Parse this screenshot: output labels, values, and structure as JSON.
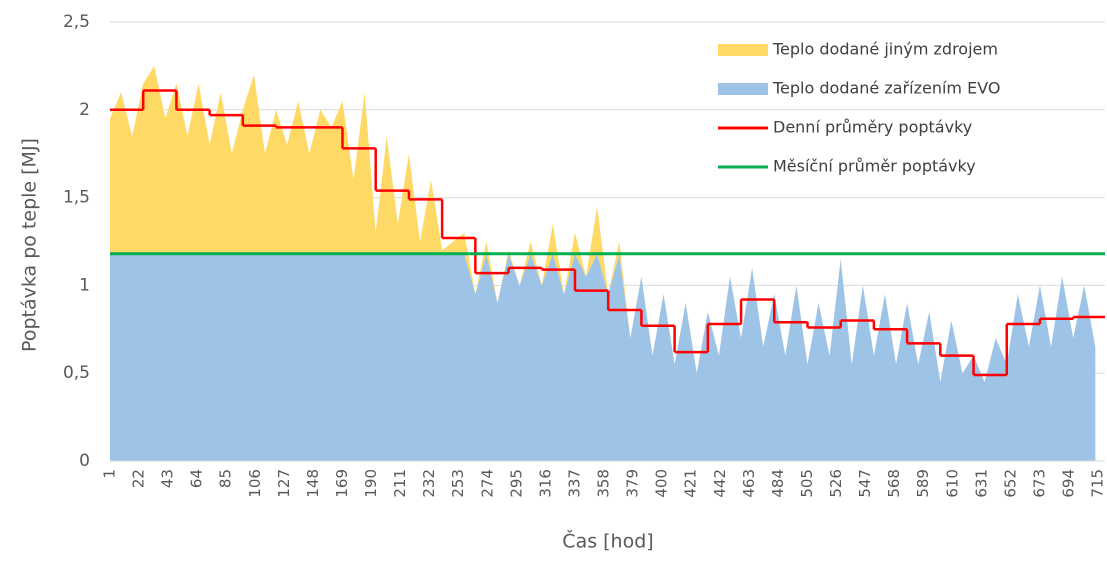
{
  "chart_data": {
    "type": "area",
    "y_label": "Poptávka po teple [MJ]",
    "x_label": "Čas [hod]",
    "xlim": [
      1,
      720
    ],
    "xticks": [
      1,
      22,
      43,
      64,
      85,
      106,
      127,
      148,
      169,
      190,
      211,
      232,
      253,
      274,
      295,
      316,
      337,
      358,
      379,
      400,
      421,
      442,
      463,
      484,
      505,
      526,
      547,
      568,
      589,
      610,
      631,
      652,
      673,
      694,
      715
    ],
    "ylim": [
      0,
      2.5
    ],
    "yticks": [
      {
        "value": 0,
        "label": "0"
      },
      {
        "value": 0.5,
        "label": "0,5"
      },
      {
        "value": 1,
        "label": "1"
      },
      {
        "value": 1.5,
        "label": "1,5"
      },
      {
        "value": 2,
        "label": "2"
      },
      {
        "value": 2.5,
        "label": "2,5"
      }
    ],
    "grid": true,
    "stacked": true,
    "x": [
      1,
      9,
      17,
      25,
      33,
      41,
      49,
      57,
      65,
      73,
      81,
      89,
      97,
      105,
      113,
      121,
      129,
      137,
      145,
      153,
      161,
      169,
      177,
      185,
      193,
      201,
      209,
      217,
      225,
      233,
      241,
      249,
      257,
      265,
      273,
      281,
      289,
      297,
      305,
      313,
      321,
      329,
      337,
      345,
      353,
      361,
      369,
      377,
      385,
      393,
      401,
      409,
      417,
      425,
      433,
      441,
      449,
      457,
      465,
      473,
      481,
      489,
      497,
      505,
      513,
      521,
      529,
      537,
      545,
      553,
      561,
      569,
      577,
      585,
      593,
      601,
      609,
      617,
      625,
      633,
      641,
      649,
      657,
      665,
      673,
      681,
      689,
      697,
      705,
      713
    ],
    "series": [
      {
        "name": "Teplo dodané jiným zdrojem",
        "kind": "area",
        "color": "#ffd966",
        "values": [
          0.77,
          0.92,
          0.67,
          0.97,
          1.07,
          0.77,
          0.97,
          0.67,
          0.97,
          0.62,
          0.92,
          0.57,
          0.82,
          1.02,
          0.57,
          0.82,
          0.62,
          0.87,
          0.57,
          0.82,
          0.72,
          0.87,
          0.42,
          0.92,
          0.12,
          0.67,
          0.17,
          0.57,
          0.07,
          0.42,
          0.02,
          0.07,
          0.12,
          0,
          0.07,
          0,
          0.02,
          0,
          0.07,
          0,
          0.17,
          0,
          0.12,
          0,
          0.27,
          0,
          0.07,
          0,
          0,
          0,
          0,
          0,
          0,
          0,
          0,
          0,
          0,
          0,
          0,
          0,
          0,
          0,
          0,
          0,
          0,
          0,
          0,
          0,
          0,
          0,
          0,
          0,
          0,
          0,
          0,
          0,
          0,
          0,
          0,
          0,
          0,
          0,
          0,
          0,
          0,
          0,
          0,
          0,
          0,
          0
        ]
      },
      {
        "name": "Teplo dodané zařízením EVO",
        "kind": "area",
        "color": "#9dc3e6",
        "values": [
          1.18,
          1.18,
          1.18,
          1.18,
          1.18,
          1.18,
          1.18,
          1.18,
          1.18,
          1.18,
          1.18,
          1.18,
          1.18,
          1.18,
          1.18,
          1.18,
          1.18,
          1.18,
          1.18,
          1.18,
          1.18,
          1.18,
          1.18,
          1.18,
          1.18,
          1.18,
          1.18,
          1.18,
          1.18,
          1.18,
          1.18,
          1.18,
          1.18,
          0.95,
          1.18,
          0.9,
          1.18,
          1.0,
          1.18,
          1.0,
          1.18,
          0.95,
          1.18,
          1.05,
          1.18,
          0.95,
          1.18,
          0.7,
          1.05,
          0.6,
          0.95,
          0.55,
          0.9,
          0.5,
          0.85,
          0.6,
          1.05,
          0.7,
          1.1,
          0.65,
          0.95,
          0.6,
          1.0,
          0.55,
          0.9,
          0.6,
          1.15,
          0.55,
          1.0,
          0.6,
          0.95,
          0.55,
          0.9,
          0.55,
          0.85,
          0.45,
          0.8,
          0.5,
          0.6,
          0.45,
          0.7,
          0.55,
          0.95,
          0.65,
          1.0,
          0.65,
          1.05,
          0.7,
          1.0,
          0.65
        ]
      },
      {
        "name": "Denní průměry poptávky",
        "kind": "step",
        "color": "#ff0000",
        "x": [
          1,
          25,
          49,
          73,
          97,
          121,
          145,
          169,
          193,
          217,
          241,
          265,
          289,
          313,
          337,
          361,
          385,
          409,
          433,
          457,
          481,
          505,
          529,
          553,
          577,
          601,
          625,
          649,
          673,
          697
        ],
        "values": [
          2.0,
          2.11,
          2.0,
          1.97,
          1.91,
          1.9,
          1.9,
          1.78,
          1.54,
          1.49,
          1.27,
          1.07,
          1.1,
          1.09,
          0.97,
          0.86,
          0.77,
          0.62,
          0.78,
          0.92,
          0.79,
          0.76,
          0.8,
          0.75,
          0.67,
          0.6,
          0.49,
          0.78,
          0.81,
          0.82
        ]
      },
      {
        "name": "Měsíční průměr poptávky",
        "kind": "line",
        "color": "#00b050",
        "x": [
          1,
          720
        ],
        "values": [
          1.18,
          1.18
        ]
      }
    ]
  }
}
